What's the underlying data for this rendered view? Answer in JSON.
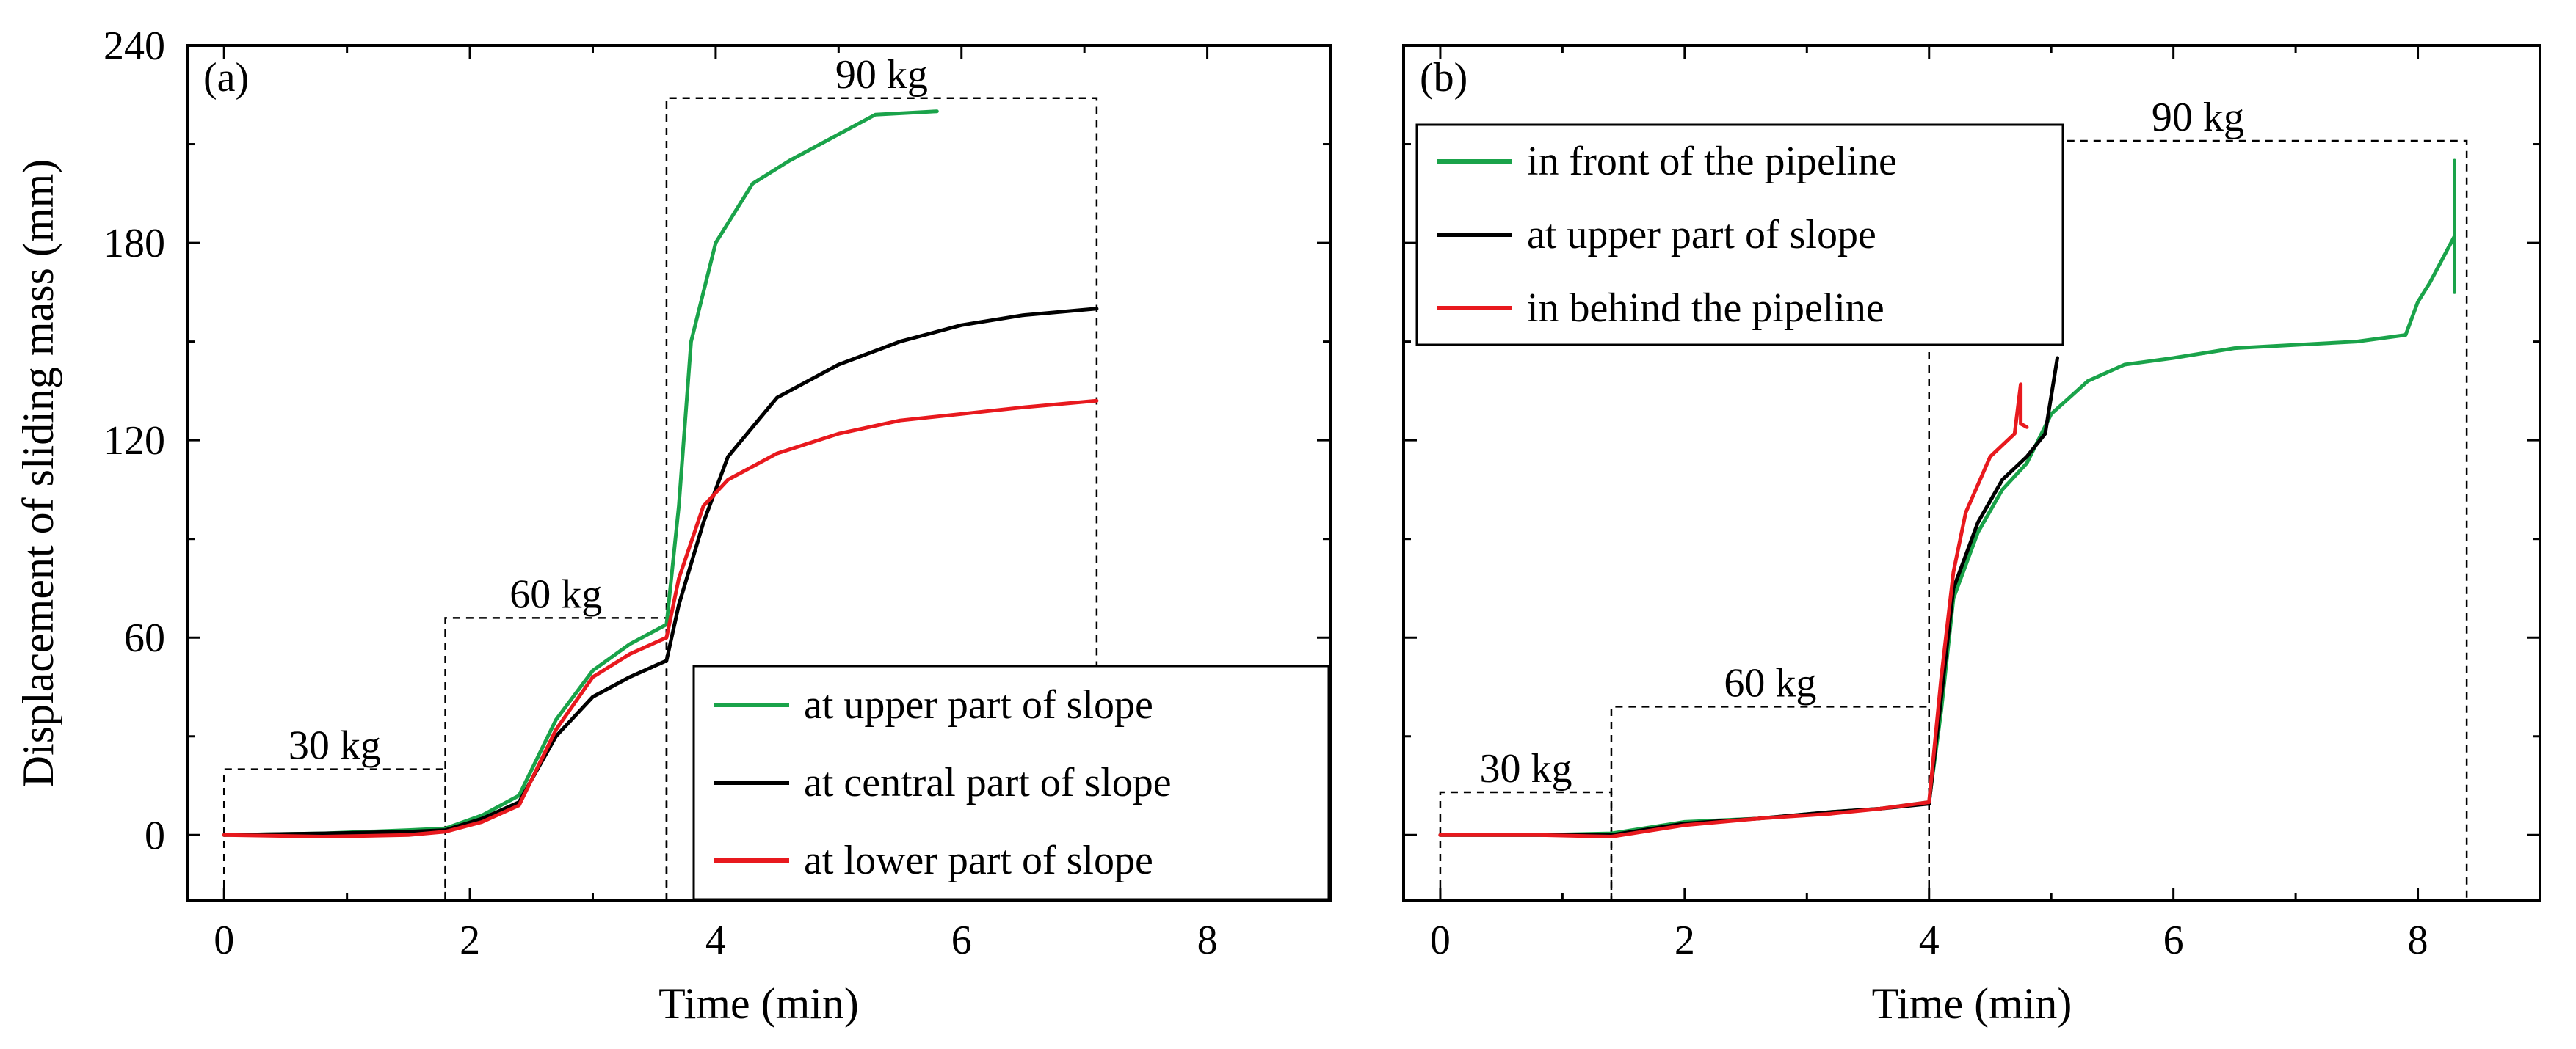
{
  "chart_data": [
    {
      "type": "line",
      "panel_label": "(a)",
      "xlabel": "Time (min)",
      "ylabel": "Displacement of sliding mass (mm)",
      "xlim": [
        -0.3,
        9.0
      ],
      "ylim": [
        -20,
        240
      ],
      "xticks": [
        0,
        2,
        4,
        6,
        8
      ],
      "yticks": [
        0,
        60,
        120,
        180,
        240
      ],
      "show_y_tick_labels": true,
      "legend_position": "bottom-right",
      "stages": [
        {
          "label": "30 kg",
          "x_start": 0,
          "x_end": 1.8,
          "top": 20
        },
        {
          "label": "60 kg",
          "x_start": 1.8,
          "x_end": 3.6,
          "top": 66
        },
        {
          "label": "90 kg",
          "x_start": 3.6,
          "x_end": 7.1,
          "top": 224
        }
      ],
      "series": [
        {
          "name": "at upper part of slope",
          "color": "#1aa34a",
          "x": [
            0,
            0.8,
            1.5,
            1.8,
            2.1,
            2.4,
            2.7,
            3.0,
            3.3,
            3.6,
            3.7,
            3.8,
            4.0,
            4.3,
            4.6,
            5.0,
            5.3,
            5.8
          ],
          "y": [
            0,
            0.5,
            1.5,
            2,
            6,
            12,
            35,
            50,
            58,
            64,
            100,
            150,
            180,
            198,
            205,
            213,
            219,
            220
          ]
        },
        {
          "name": "at central part of slope",
          "color": "#000000",
          "x": [
            0,
            0.8,
            1.5,
            1.8,
            2.1,
            2.4,
            2.7,
            3.0,
            3.3,
            3.6,
            3.7,
            3.9,
            4.1,
            4.5,
            5.0,
            5.5,
            6.0,
            6.5,
            7.1
          ],
          "y": [
            0,
            0.5,
            1,
            1.5,
            5,
            10,
            30,
            42,
            48,
            53,
            70,
            95,
            115,
            133,
            143,
            150,
            155,
            158,
            160
          ]
        },
        {
          "name": "at lower part of slope",
          "color": "#e8191e",
          "x": [
            0,
            0.8,
            1.5,
            1.8,
            2.1,
            2.4,
            2.7,
            3.0,
            3.3,
            3.6,
            3.7,
            3.9,
            4.1,
            4.5,
            5.0,
            5.5,
            6.0,
            6.5,
            7.1
          ],
          "y": [
            0,
            -0.5,
            0,
            1,
            4,
            9,
            32,
            48,
            55,
            60,
            78,
            100,
            108,
            116,
            122,
            126,
            128,
            130,
            132
          ]
        }
      ]
    },
    {
      "type": "line",
      "panel_label": "(b)",
      "xlabel": "Time (min)",
      "ylabel": "",
      "xlim": [
        -0.3,
        9.0
      ],
      "ylim": [
        -20,
        240
      ],
      "xticks": [
        0,
        2,
        4,
        6,
        8
      ],
      "yticks": [
        0,
        60,
        120,
        180,
        240
      ],
      "show_y_tick_labels": false,
      "legend_position": "top-left",
      "stages": [
        {
          "label": "30 kg",
          "x_start": 0,
          "x_end": 1.4,
          "top": 13
        },
        {
          "label": "60 kg",
          "x_start": 1.4,
          "x_end": 4.0,
          "top": 39
        },
        {
          "label": "90 kg",
          "x_start": 4.0,
          "x_end": 8.4,
          "top": 211
        }
      ],
      "series": [
        {
          "name": "in front of the pipeline",
          "color": "#1aa34a",
          "x": [
            0,
            0.8,
            1.4,
            2.0,
            2.6,
            3.2,
            3.6,
            4.0,
            4.1,
            4.2,
            4.4,
            4.6,
            4.8,
            5.0,
            5.3,
            5.6,
            6.0,
            6.5,
            7.0,
            7.5,
            7.9,
            8.0,
            8.1,
            8.2,
            8.3,
            8.3,
            8.3
          ],
          "y": [
            0,
            0,
            0.5,
            4,
            5,
            7,
            8,
            10,
            38,
            72,
            92,
            105,
            113,
            128,
            138,
            143,
            145,
            148,
            149,
            150,
            152,
            162,
            168,
            175,
            182,
            205,
            165
          ]
        },
        {
          "name": "at upper part of slope",
          "color": "#000000",
          "x": [
            0,
            0.8,
            1.4,
            2.0,
            2.6,
            3.2,
            3.6,
            4.0,
            4.1,
            4.2,
            4.4,
            4.6,
            4.8,
            4.95,
            5.05
          ],
          "y": [
            0,
            0,
            0,
            3.5,
            5,
            7,
            8,
            9.5,
            42,
            75,
            95,
            108,
            115,
            122,
            145
          ]
        },
        {
          "name": "in behind the pipeline",
          "color": "#e8191e",
          "x": [
            0,
            0.8,
            1.4,
            2.0,
            2.6,
            3.2,
            3.6,
            4.0,
            4.1,
            4.2,
            4.3,
            4.5,
            4.7,
            4.75,
            4.75,
            4.8
          ],
          "y": [
            0,
            0,
            -0.5,
            3,
            5,
            6.5,
            8,
            10,
            48,
            80,
            98,
            115,
            122,
            137,
            125,
            124
          ]
        }
      ]
    }
  ]
}
